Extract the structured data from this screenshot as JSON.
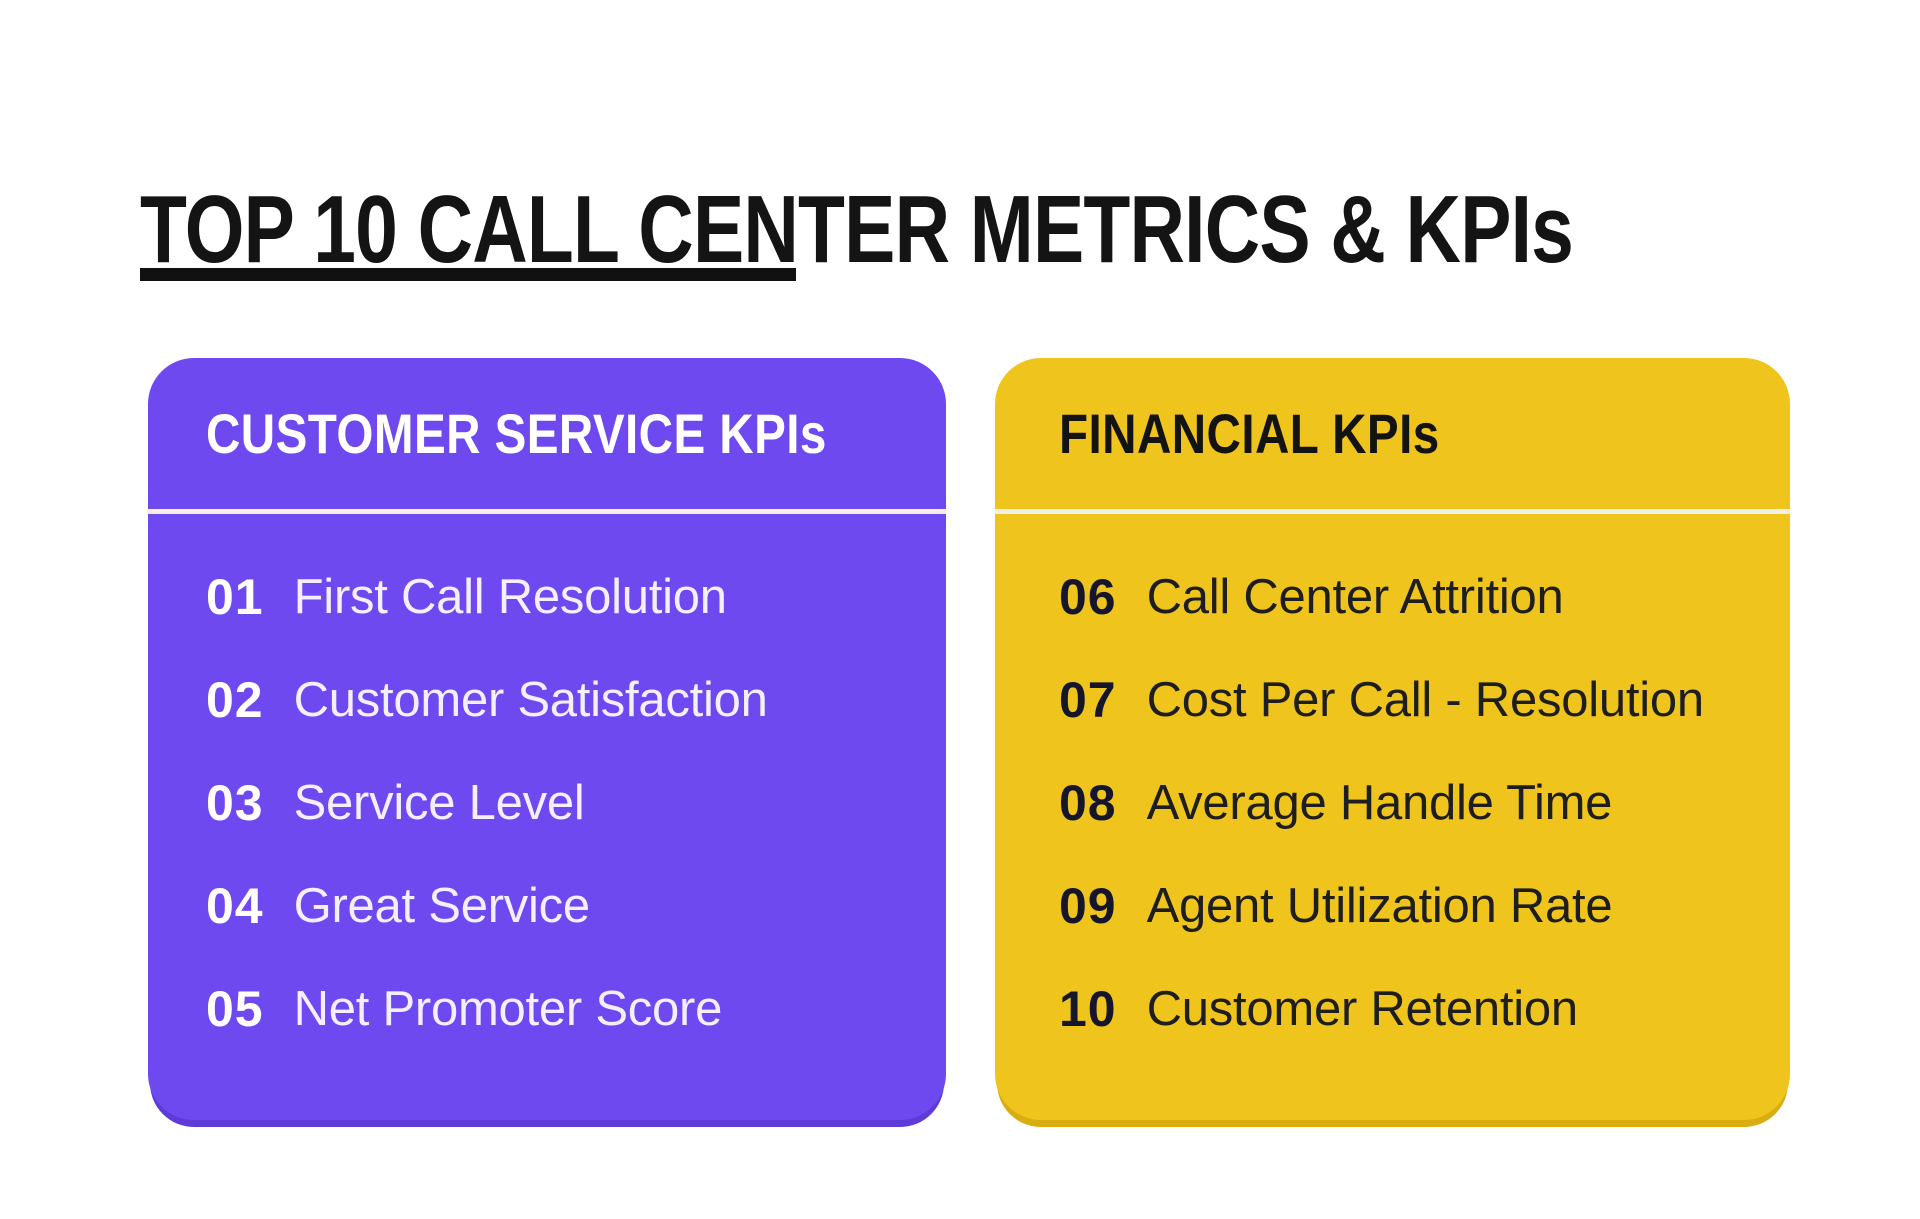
{
  "title": "TOP 10 CALL CENTER METRICS & KPIs",
  "colors": {
    "title_text": "#141414",
    "purple": "#6F49F0",
    "purple_shadow": "#5E3BD9",
    "purple_text": "#F3EFFE",
    "yellow": "#EFC41D",
    "yellow_shadow": "#D9AC12",
    "yellow_number": "#16162B",
    "yellow_text": "#1E1E1E",
    "divider": "#F4EFE4"
  },
  "cards": [
    {
      "id": "customer-service",
      "header": "CUSTOMER SERVICE KPIs",
      "items": [
        {
          "number": "01",
          "label": "First Call Resolution"
        },
        {
          "number": "02",
          "label": "Customer Satisfaction"
        },
        {
          "number": "03",
          "label": "Service Level"
        },
        {
          "number": "04",
          "label": "Great Service"
        },
        {
          "number": "05",
          "label": "Net Promoter Score"
        }
      ]
    },
    {
      "id": "financial",
      "header": "FINANCIAL KPIs",
      "items": [
        {
          "number": "06",
          "label": "Call Center Attrition"
        },
        {
          "number": "07",
          "label": "Cost Per Call - Resolution"
        },
        {
          "number": "08",
          "label": "Average Handle Time"
        },
        {
          "number": "09",
          "label": "Agent Utilization Rate"
        },
        {
          "number": "10",
          "label": "Customer Retention"
        }
      ]
    }
  ]
}
